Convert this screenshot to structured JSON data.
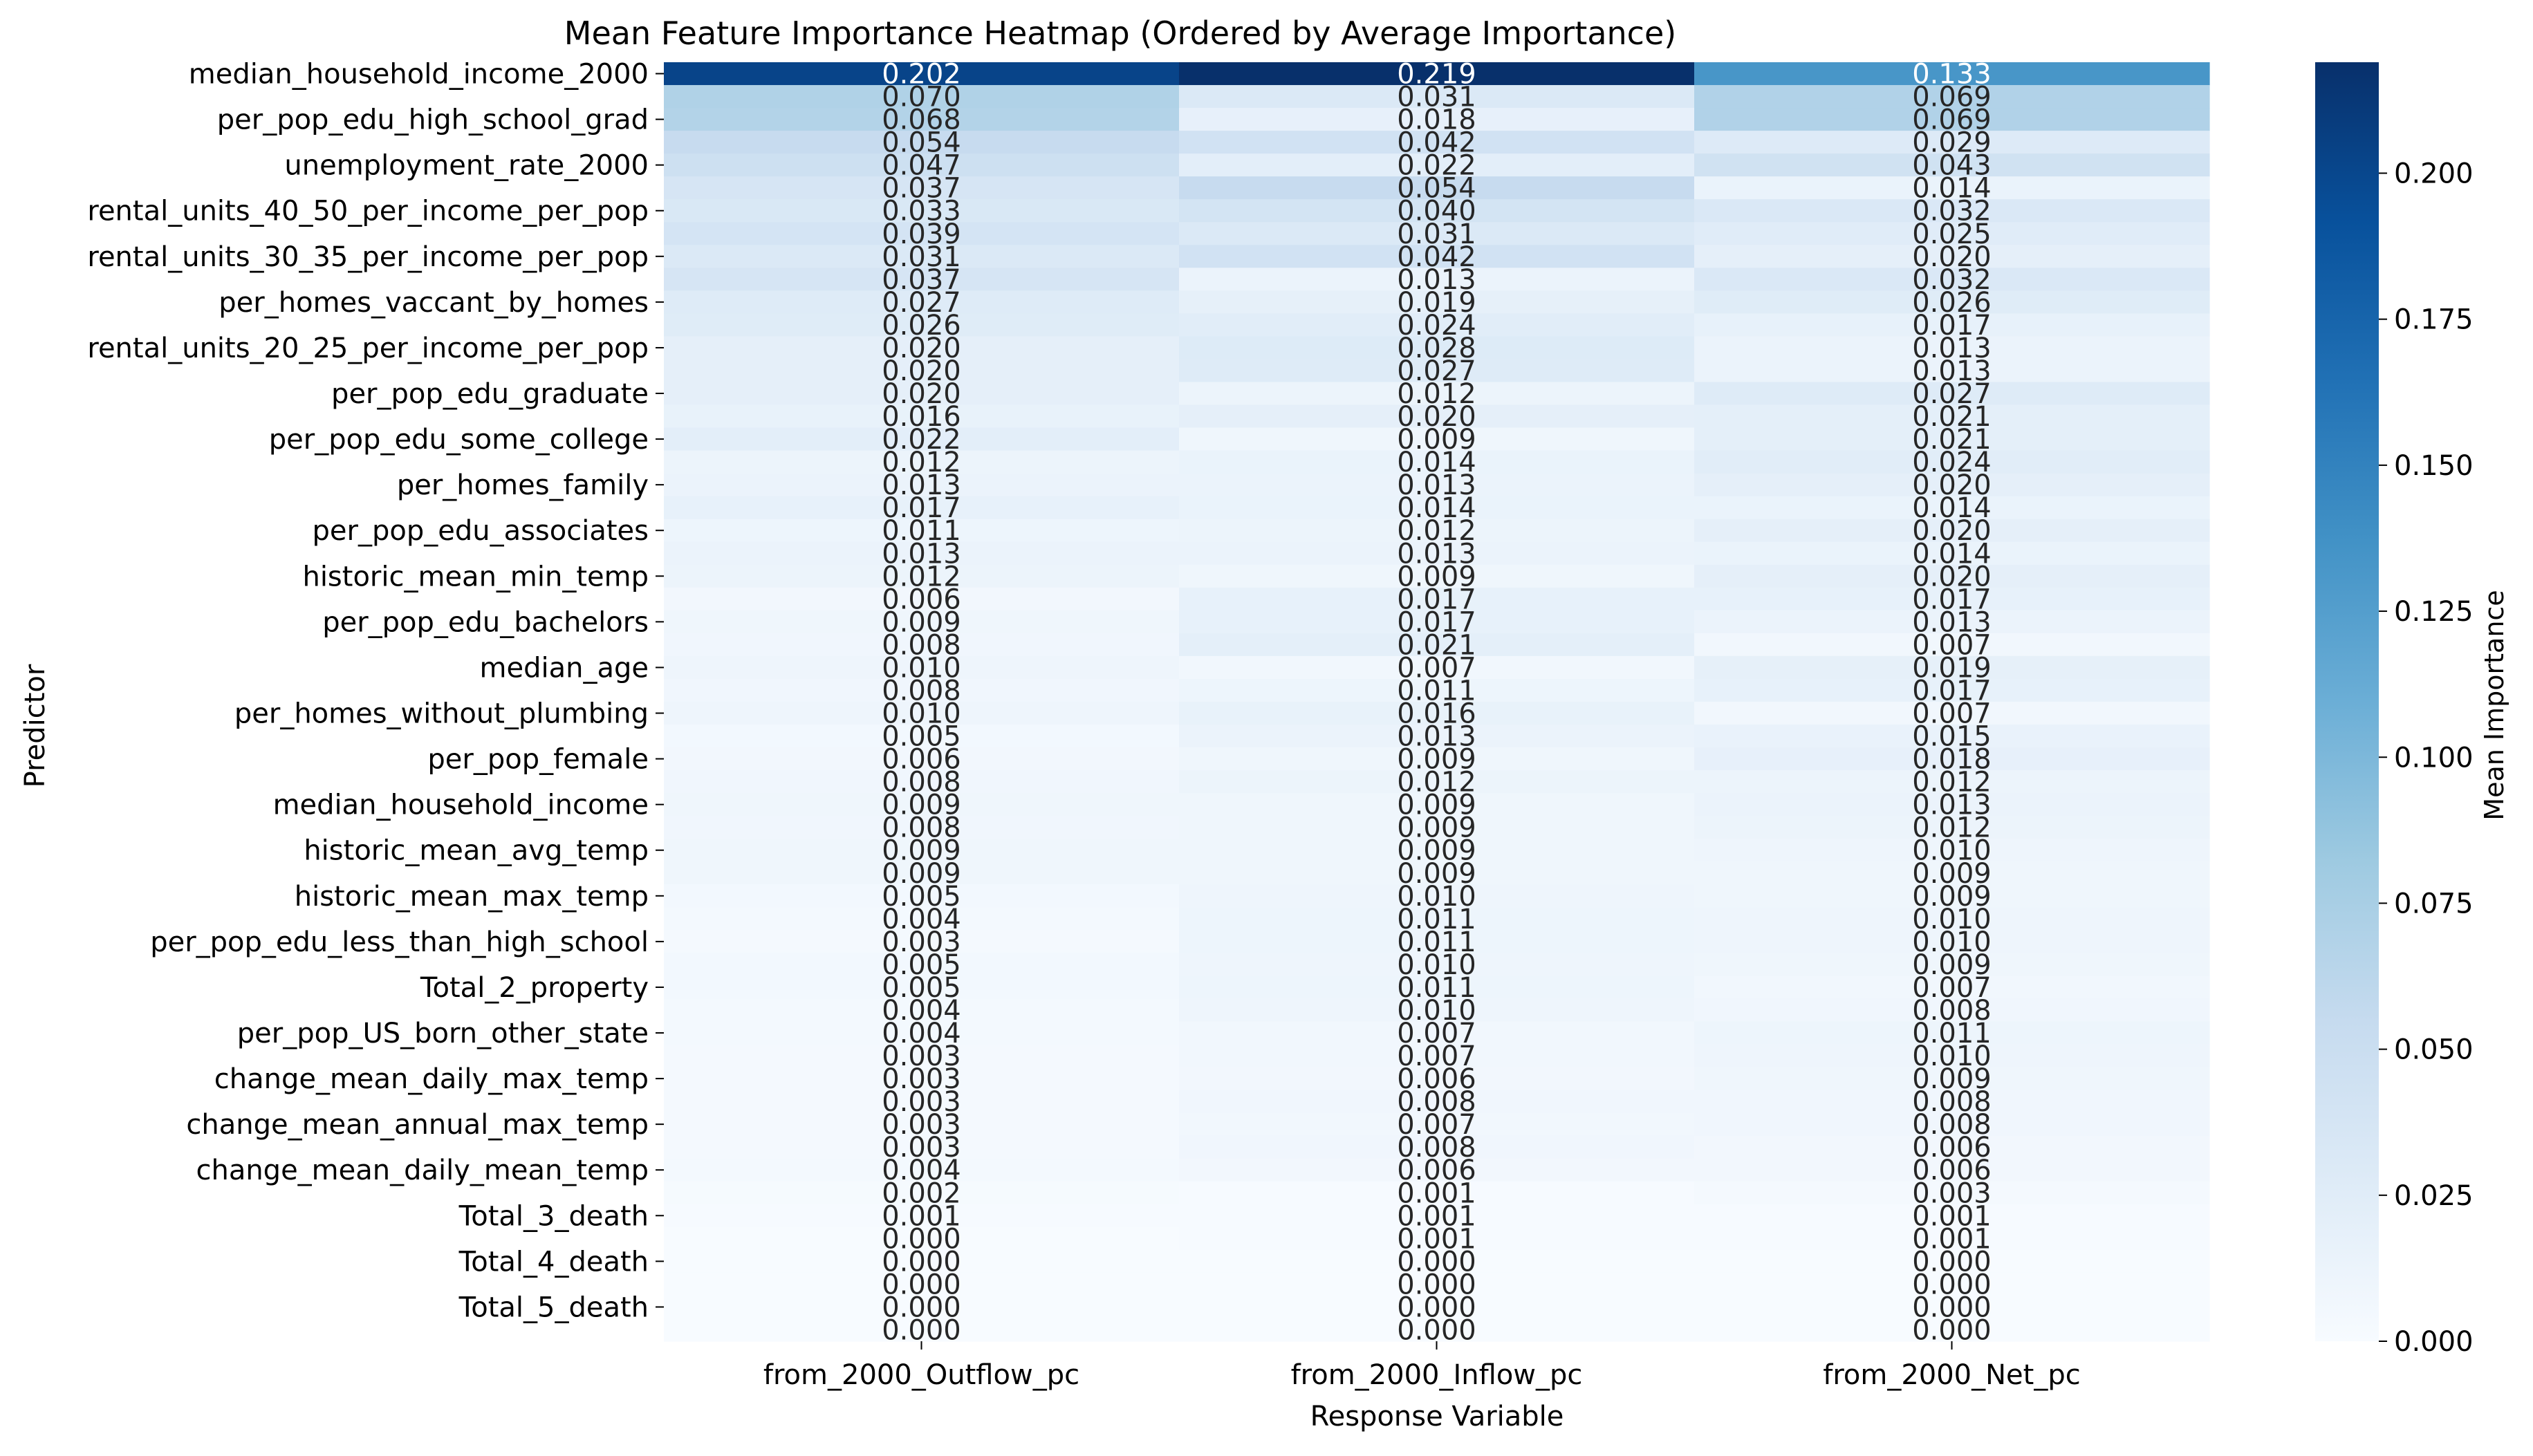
{
  "chart_data": {
    "type": "heatmap",
    "title": "Mean Feature Importance Heatmap (Ordered by Average Importance)",
    "xlabel": "Response Variable",
    "ylabel": "Predictor",
    "colorbar_label": "Mean Importance",
    "colormap": "Blues",
    "vmin": 0.0,
    "vmax": 0.219,
    "colorbar_ticks": [
      "0.000",
      "0.025",
      "0.050",
      "0.075",
      "0.100",
      "0.125",
      "0.150",
      "0.175",
      "0.200"
    ],
    "columns": [
      "from_2000_Outflow_pc",
      "from_2000_Inflow_pc",
      "from_2000_Net_pc"
    ],
    "row_tick_labels": [
      "median_household_income_2000",
      "per_pop_edu_high_school_grad",
      "unemployment_rate_2000",
      "rental_units_40_50_per_income_per_pop",
      "rental_units_30_35_per_income_per_pop",
      "per_homes_vaccant_by_homes",
      "rental_units_20_25_per_income_per_pop",
      "per_pop_edu_graduate",
      "per_pop_edu_some_college",
      "per_homes_family",
      "per_pop_edu_associates",
      "historic_mean_min_temp",
      "per_pop_edu_bachelors",
      "median_age",
      "per_homes_without_plumbing",
      "per_pop_female",
      "median_household_income",
      "historic_mean_avg_temp",
      "historic_mean_max_temp",
      "per_pop_edu_less_than_high_school",
      "Total_2_property",
      "per_pop_US_born_other_state",
      "change_mean_daily_max_temp",
      "change_mean_annual_max_temp",
      "change_mean_daily_mean_temp",
      "Total_3_death",
      "Total_4_death",
      "Total_5_death"
    ],
    "values": [
      [
        0.202,
        0.219,
        0.133
      ],
      [
        0.07,
        0.031,
        0.069
      ],
      [
        0.068,
        0.018,
        0.069
      ],
      [
        0.054,
        0.042,
        0.029
      ],
      [
        0.047,
        0.022,
        0.043
      ],
      [
        0.037,
        0.054,
        0.014
      ],
      [
        0.033,
        0.04,
        0.032
      ],
      [
        0.039,
        0.031,
        0.025
      ],
      [
        0.031,
        0.042,
        0.02
      ],
      [
        0.037,
        0.013,
        0.032
      ],
      [
        0.027,
        0.019,
        0.026
      ],
      [
        0.026,
        0.024,
        0.017
      ],
      [
        0.02,
        0.028,
        0.013
      ],
      [
        0.02,
        0.027,
        0.013
      ],
      [
        0.02,
        0.012,
        0.027
      ],
      [
        0.016,
        0.02,
        0.021
      ],
      [
        0.022,
        0.009,
        0.021
      ],
      [
        0.012,
        0.014,
        0.024
      ],
      [
        0.013,
        0.013,
        0.02
      ],
      [
        0.017,
        0.014,
        0.014
      ],
      [
        0.011,
        0.012,
        0.02
      ],
      [
        0.013,
        0.013,
        0.014
      ],
      [
        0.012,
        0.009,
        0.02
      ],
      [
        0.006,
        0.017,
        0.017
      ],
      [
        0.009,
        0.017,
        0.013
      ],
      [
        0.008,
        0.021,
        0.007
      ],
      [
        0.01,
        0.007,
        0.019
      ],
      [
        0.008,
        0.011,
        0.017
      ],
      [
        0.01,
        0.016,
        0.007
      ],
      [
        0.005,
        0.013,
        0.015
      ],
      [
        0.006,
        0.009,
        0.018
      ],
      [
        0.008,
        0.012,
        0.012
      ],
      [
        0.009,
        0.009,
        0.013
      ],
      [
        0.008,
        0.009,
        0.012
      ],
      [
        0.009,
        0.009,
        0.01
      ],
      [
        0.009,
        0.009,
        0.009
      ],
      [
        0.005,
        0.01,
        0.009
      ],
      [
        0.004,
        0.011,
        0.01
      ],
      [
        0.003,
        0.011,
        0.01
      ],
      [
        0.005,
        0.01,
        0.009
      ],
      [
        0.005,
        0.011,
        0.007
      ],
      [
        0.004,
        0.01,
        0.008
      ],
      [
        0.004,
        0.007,
        0.011
      ],
      [
        0.003,
        0.007,
        0.01
      ],
      [
        0.003,
        0.006,
        0.009
      ],
      [
        0.003,
        0.008,
        0.008
      ],
      [
        0.003,
        0.007,
        0.008
      ],
      [
        0.003,
        0.008,
        0.006
      ],
      [
        0.004,
        0.006,
        0.006
      ],
      [
        0.002,
        0.001,
        0.003
      ],
      [
        0.001,
        0.001,
        0.001
      ],
      [
        0.0,
        0.001,
        0.001
      ],
      [
        0.0,
        0.0,
        0.0
      ],
      [
        0.0,
        0.0,
        0.0
      ],
      [
        0.0,
        0.0,
        0.0
      ],
      [
        0.0,
        0.0,
        0.0
      ]
    ],
    "grid": false,
    "legend": "colorbar-right"
  }
}
